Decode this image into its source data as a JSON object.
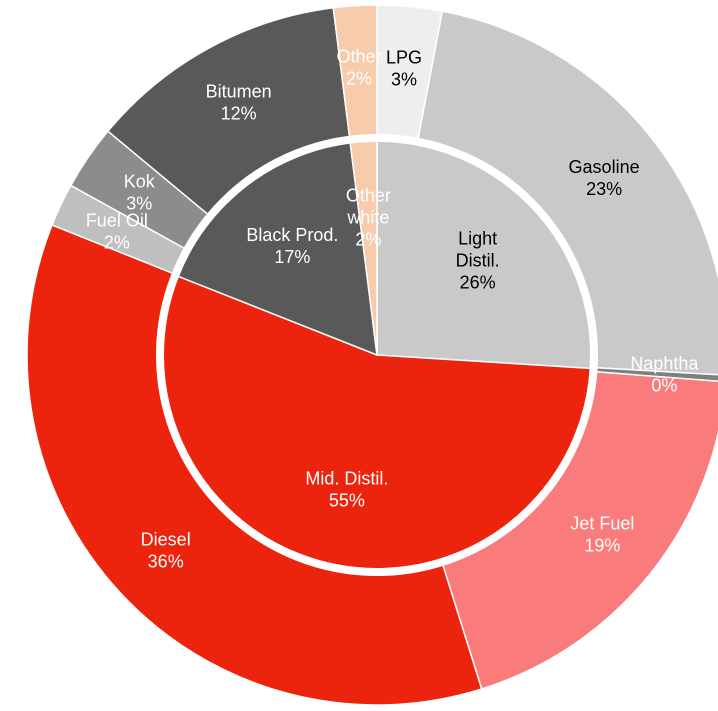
{
  "chart_data": {
    "type": "pie",
    "variant": "two-level donut (sunburst)",
    "outer_ring": [
      {
        "name": "LPG",
        "value": 3,
        "label_value": "3%",
        "color": "#eeeeee",
        "text_color": "#000000"
      },
      {
        "name": "Gasoline",
        "value": 23,
        "label_value": "23%",
        "color": "#c9c9c9",
        "text_color": "#000000"
      },
      {
        "name": "Naphtha",
        "value": 0.3,
        "label_value": "0%",
        "color": "#7f7f7f",
        "text_color": "#ffffff"
      },
      {
        "name": "Jet Fuel",
        "value": 19,
        "label_value": "19%",
        "color": "#fa7b7b",
        "text_color": "#ffffff"
      },
      {
        "name": "Diesel",
        "value": 36,
        "label_value": "36%",
        "color": "#ec230d",
        "text_color": "#ffffff"
      },
      {
        "name": "Fuel Oil",
        "value": 2,
        "label_value": "2%",
        "color": "#bfbfbf",
        "text_color": "#ffffff"
      },
      {
        "name": "Kok",
        "value": 3,
        "label_value": "3%",
        "color": "#8c8c8c",
        "text_color": "#ffffff"
      },
      {
        "name": "Bitumen",
        "value": 12,
        "label_value": "12%",
        "color": "#595959",
        "text_color": "#ffffff"
      },
      {
        "name": "Other",
        "value": 2,
        "label_value": "2%",
        "color": "#f8cbad",
        "text_color": "#ffffff"
      }
    ],
    "inner_ring": [
      {
        "name": "Light\nDistil.",
        "value": 26,
        "label_value": "26%",
        "color": "#c9c9c9",
        "text_color": "#000000"
      },
      {
        "name": "Mid. Distil.",
        "value": 55,
        "label_value": "55%",
        "color": "#ec230d",
        "text_color": "#ffffff"
      },
      {
        "name": "Black Prod.",
        "value": 17,
        "label_value": "17%",
        "color": "#595959",
        "text_color": "#ffffff"
      },
      {
        "name": "Other\nwhite",
        "value": 2,
        "label_value": "2%",
        "color": "#f8cbad",
        "text_color": "#ffffff"
      }
    ],
    "start_angle_deg": 0,
    "direction": "clockwise",
    "separator_color": "#ffffff"
  }
}
